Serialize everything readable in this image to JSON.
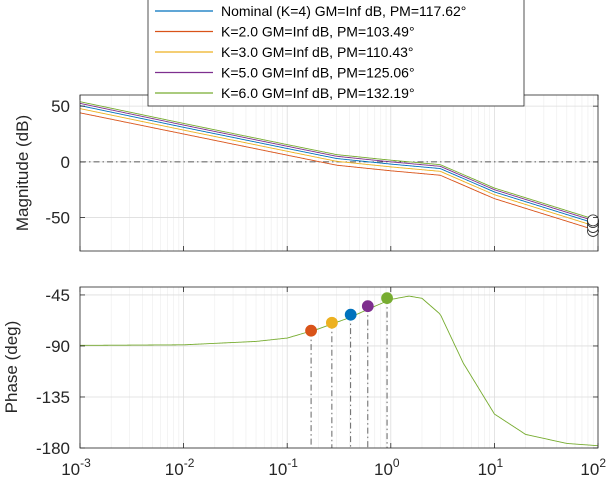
{
  "chart_data": {
    "type": "line",
    "xscale": "log",
    "xlim": [
      0.001,
      100
    ],
    "x_ticks": [
      0.001,
      0.01,
      0.1,
      1,
      10,
      100
    ],
    "x_tick_labels": [
      {
        "base": "10",
        "exp": "-3"
      },
      {
        "base": "10",
        "exp": "-2"
      },
      {
        "base": "10",
        "exp": "-1"
      },
      {
        "base": "10",
        "exp": "0"
      },
      {
        "base": "10",
        "exp": "1"
      },
      {
        "base": "10",
        "exp": "2"
      }
    ],
    "grid": true,
    "legend_position": "top",
    "legend": [
      {
        "label": "Nominal (K=4) GM=Inf dB, PM=117.62°",
        "color": "#0072BD"
      },
      {
        "label": "K=2.0 GM=Inf dB, PM=103.49°",
        "color": "#D95319"
      },
      {
        "label": "K=3.0 GM=Inf dB, PM=110.43°",
        "color": "#EDB120"
      },
      {
        "label": "K=5.0 GM=Inf dB, PM=125.06°",
        "color": "#7E2F8E"
      },
      {
        "label": "K=6.0 GM=Inf dB, PM=132.19°",
        "color": "#77AC30"
      }
    ],
    "magnitude": {
      "ylabel": "Magnitude (dB)",
      "ylim": [
        -80,
        60
      ],
      "y_ticks": [
        50,
        0,
        -50
      ],
      "y_tick_labels": [
        "50",
        "0",
        "-50"
      ],
      "reference_line_db": 0,
      "x": [
        0.001,
        0.01,
        0.1,
        0.3,
        1,
        3,
        10,
        100
      ],
      "series": [
        {
          "color": "#0072BD",
          "values": [
            50.5,
            31,
            12,
            3,
            -2,
            -6,
            -27,
            -56
          ]
        },
        {
          "color": "#D95319",
          "values": [
            44,
            25,
            6,
            -3,
            -8,
            -12,
            -33,
            -62
          ]
        },
        {
          "color": "#EDB120",
          "values": [
            47.8,
            28.5,
            9.5,
            0.5,
            -4.5,
            -8.5,
            -29.5,
            -58.5
          ]
        },
        {
          "color": "#7E2F8E",
          "values": [
            52.5,
            33,
            14,
            5,
            0,
            -4,
            -25,
            -54
          ]
        },
        {
          "color": "#77AC30",
          "values": [
            54,
            34.5,
            15.5,
            6.5,
            1.5,
            -2.5,
            -23.5,
            -52.5
          ]
        }
      ],
      "end_markers": [
        -56,
        -62,
        -58.5,
        -54,
        -52.5
      ]
    },
    "phase": {
      "ylabel": "Phase (deg)",
      "ylim": [
        -180,
        -38
      ],
      "y_ticks": [
        -45,
        -90,
        -135,
        -180
      ],
      "y_tick_labels": [
        "-45",
        "-90",
        "-135",
        "-180"
      ],
      "x": [
        0.001,
        0.01,
        0.05,
        0.1,
        0.2,
        0.4,
        0.7,
        1,
        1.5,
        2,
        3,
        5,
        10,
        20,
        50,
        100
      ],
      "values": [
        -89.5,
        -89,
        -86,
        -83,
        -75,
        -65,
        -55,
        -49,
        -46,
        -48,
        -62,
        -105,
        -150,
        -168,
        -176,
        -178
      ],
      "color": "#77AC30",
      "crossover_markers": [
        {
          "x": 0.17,
          "phase": -76.5,
          "color": "#D95319"
        },
        {
          "x": 0.27,
          "phase": -69.5,
          "color": "#EDB120"
        },
        {
          "x": 0.41,
          "phase": -62.4,
          "color": "#0072BD"
        },
        {
          "x": 0.6,
          "phase": -54.9,
          "color": "#7E2F8E"
        },
        {
          "x": 0.92,
          "phase": -47.8,
          "color": "#77AC30"
        }
      ]
    }
  }
}
